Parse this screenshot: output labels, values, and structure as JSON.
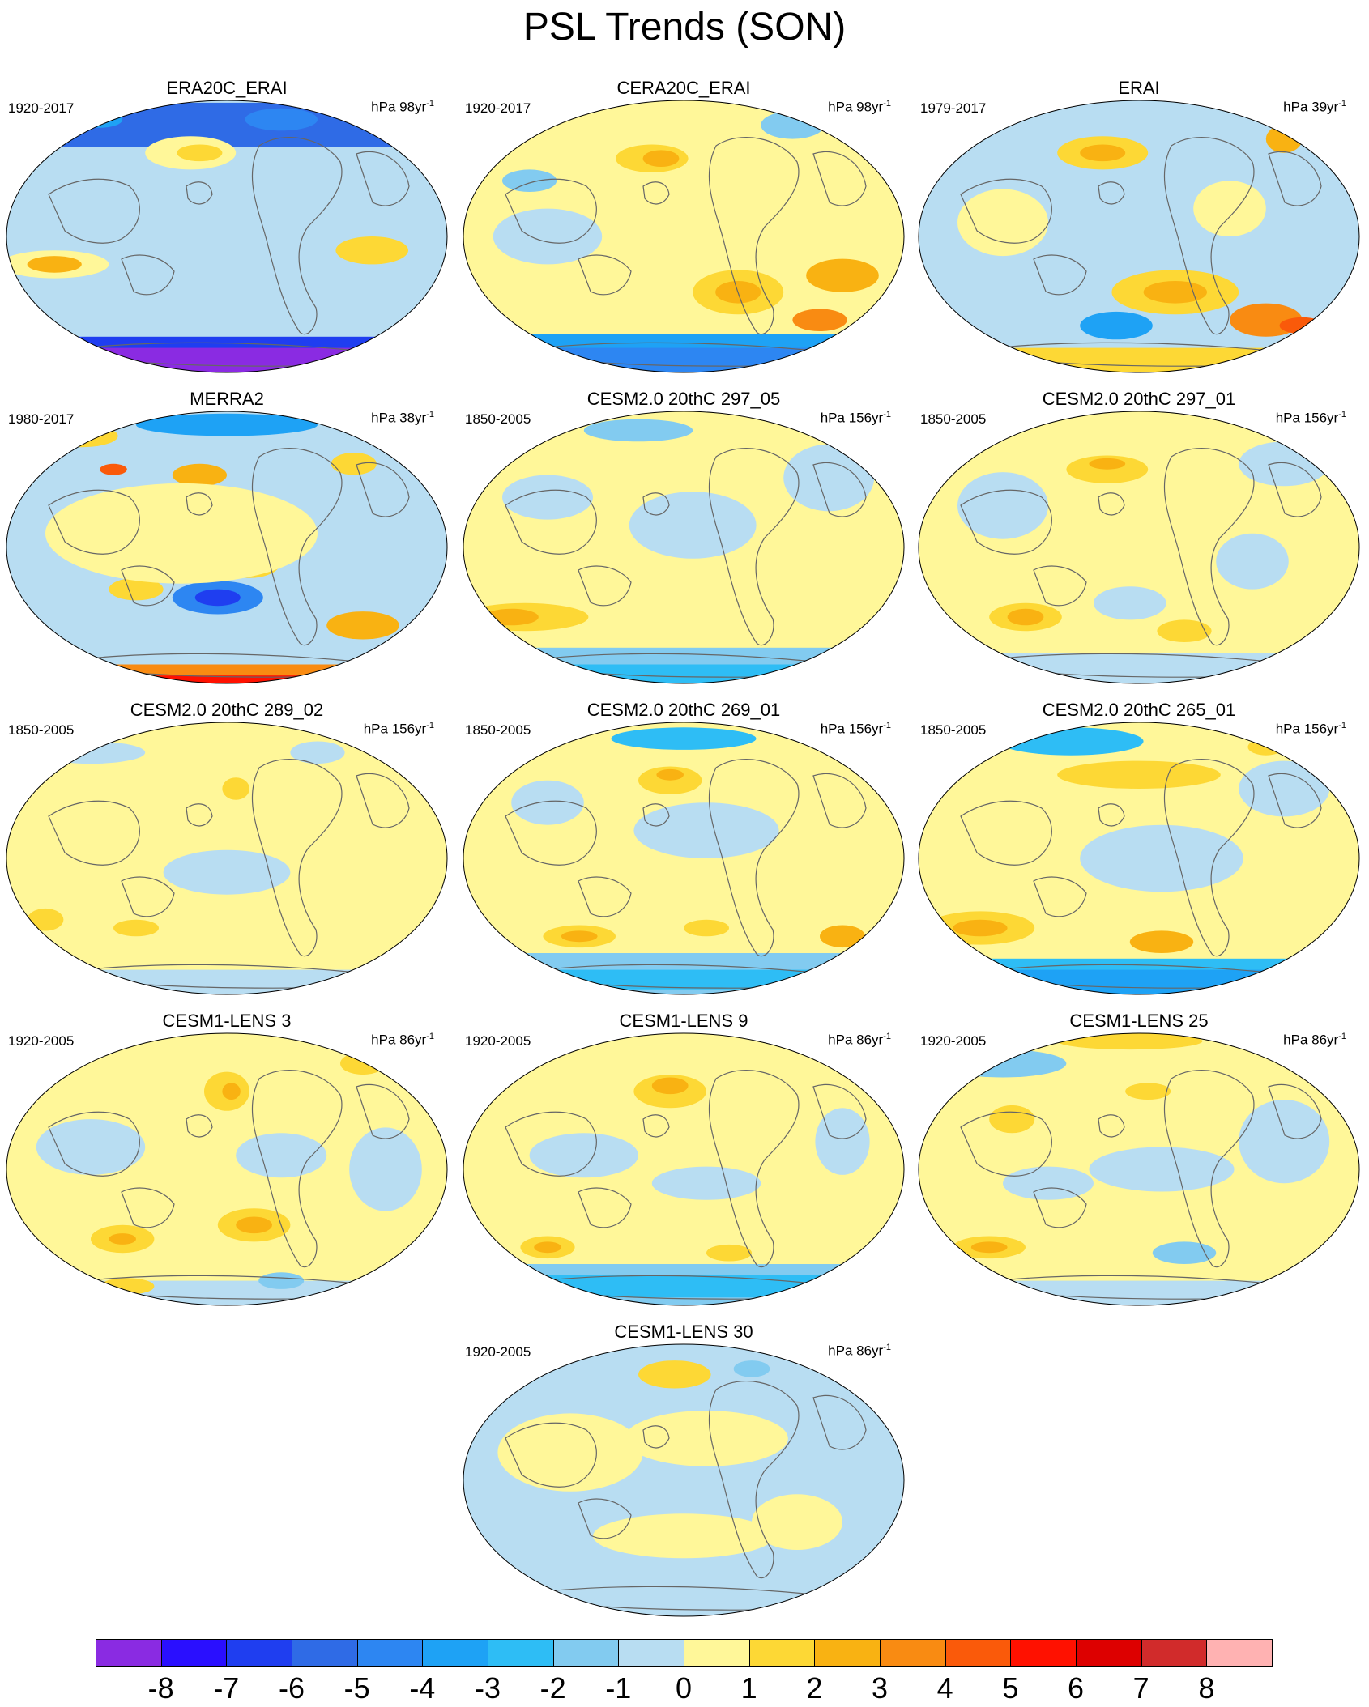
{
  "title": "PSL Trends (SON)",
  "colorbar": {
    "labels": [
      "-8",
      "-7",
      "-6",
      "-5",
      "-4",
      "-3",
      "-2",
      "-1",
      "0",
      "1",
      "2",
      "3",
      "4",
      "5",
      "6",
      "7",
      "8"
    ],
    "colors": [
      "#8A2BE2",
      "#2A0FFF",
      "#1F3EF0",
      "#2F6BE6",
      "#2D86F2",
      "#1EA2F5",
      "#2EBDF5",
      "#82CBF0",
      "#B8DDF2",
      "#FFF799",
      "#FDD835",
      "#F9B212",
      "#F98B12",
      "#FA5A0A",
      "#FF1100",
      "#DD0000",
      "#D12B2B",
      "#FFB2B2"
    ]
  },
  "panels": [
    {
      "title": "ERA20C_ERAI",
      "period": "1920-2017",
      "units_prefix": "hPa 98yr",
      "units_sup": "-1"
    },
    {
      "title": "CERA20C_ERAI",
      "period": "1920-2017",
      "units_prefix": "hPa 98yr",
      "units_sup": "-1"
    },
    {
      "title": "ERAI",
      "period": "1979-2017",
      "units_prefix": "hPa 39yr",
      "units_sup": "-1"
    },
    {
      "title": "MERRA2",
      "period": "1980-2017",
      "units_prefix": "hPa 38yr",
      "units_sup": "-1"
    },
    {
      "title": "CESM2.0 20thC 297_05",
      "period": "1850-2005",
      "units_prefix": "hPa 156yr",
      "units_sup": "-1"
    },
    {
      "title": "CESM2.0 20thC 297_01",
      "period": "1850-2005",
      "units_prefix": "hPa 156yr",
      "units_sup": "-1"
    },
    {
      "title": "CESM2.0 20thC 289_02",
      "period": "1850-2005",
      "units_prefix": "hPa 156yr",
      "units_sup": "-1"
    },
    {
      "title": "CESM2.0 20thC 269_01",
      "period": "1850-2005",
      "units_prefix": "hPa 156yr",
      "units_sup": "-1"
    },
    {
      "title": "CESM2.0 20thC 265_01",
      "period": "1850-2005",
      "units_prefix": "hPa 156yr",
      "units_sup": "-1"
    },
    {
      "title": "CESM1-LENS 3",
      "period": "1920-2005",
      "units_prefix": "hPa 86yr",
      "units_sup": "-1"
    },
    {
      "title": "CESM1-LENS 9",
      "period": "1920-2005",
      "units_prefix": "hPa 86yr",
      "units_sup": "-1"
    },
    {
      "title": "CESM1-LENS 25",
      "period": "1920-2005",
      "units_prefix": "hPa 86yr",
      "units_sup": "-1"
    },
    {
      "title": "CESM1-LENS 30",
      "period": "1920-2005",
      "units_prefix": "hPa 86yr",
      "units_sup": "-1"
    }
  ]
}
